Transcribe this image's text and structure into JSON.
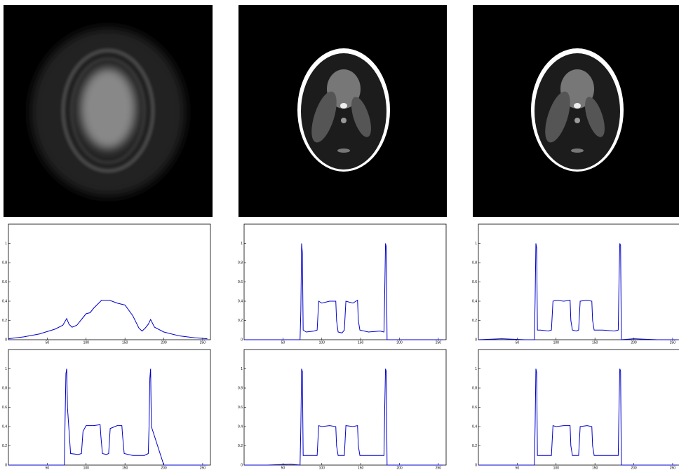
{
  "chart_data": [
    {
      "type": "line",
      "xlim": [
        0,
        260
      ],
      "ylim": [
        0,
        1.2
      ],
      "xticks": [
        50,
        100,
        150,
        200,
        250
      ],
      "yticks": [
        0,
        0.2,
        0.4,
        0.6,
        0.8,
        1
      ],
      "x": [
        0,
        20,
        40,
        60,
        70,
        75,
        78,
        82,
        88,
        95,
        100,
        105,
        110,
        120,
        130,
        140,
        150,
        160,
        168,
        172,
        176,
        180,
        183,
        188,
        200,
        220,
        240,
        256
      ],
      "series": [
        {
          "color": "#0000cc",
          "values": [
            0.01,
            0.03,
            0.06,
            0.11,
            0.15,
            0.22,
            0.16,
            0.13,
            0.15,
            0.22,
            0.27,
            0.28,
            0.33,
            0.41,
            0.41,
            0.38,
            0.36,
            0.25,
            0.12,
            0.09,
            0.12,
            0.16,
            0.21,
            0.13,
            0.08,
            0.04,
            0.02,
            0.01
          ]
        }
      ]
    },
    {
      "type": "line",
      "xlim": [
        0,
        260
      ],
      "ylim": [
        0,
        1.2
      ],
      "xticks": [
        50,
        100,
        150,
        200,
        250
      ],
      "yticks": [
        0,
        0.2,
        0.4,
        0.6,
        0.8,
        1
      ],
      "x": [
        0,
        30,
        60,
        72,
        73,
        74,
        75,
        76,
        80,
        90,
        94,
        96,
        100,
        110,
        118,
        119,
        121,
        126,
        129,
        131,
        140,
        146,
        147,
        149,
        160,
        175,
        180,
        181,
        182,
        183,
        184,
        200,
        230,
        256
      ],
      "series": [
        {
          "color": "#0000cc",
          "values": [
            0,
            0,
            0,
            0,
            0.3,
            1.0,
            0.9,
            0.1,
            0.08,
            0.09,
            0.1,
            0.4,
            0.38,
            0.4,
            0.4,
            0.2,
            0.08,
            0.07,
            0.1,
            0.4,
            0.38,
            0.41,
            0.2,
            0.1,
            0.08,
            0.09,
            0.08,
            0.5,
            1.0,
            0.96,
            0,
            0,
            0,
            0
          ]
        }
      ]
    },
    {
      "type": "line",
      "xlim": [
        0,
        260
      ],
      "ylim": [
        0,
        1.2
      ],
      "xticks": [
        50,
        100,
        150,
        200,
        250
      ],
      "yticks": [
        0,
        0.2,
        0.4,
        0.6,
        0.8,
        1
      ],
      "x": [
        0,
        30,
        60,
        72,
        73,
        74,
        75,
        76,
        80,
        90,
        94,
        96,
        100,
        110,
        118,
        119,
        121,
        126,
        129,
        131,
        140,
        146,
        147,
        149,
        160,
        175,
        180,
        181,
        182,
        183,
        184,
        200,
        230,
        256
      ],
      "series": [
        {
          "color": "#0000cc",
          "values": [
            0,
            0.01,
            0,
            0,
            0.4,
            1.0,
            0.95,
            0.1,
            0.1,
            0.09,
            0.1,
            0.4,
            0.41,
            0.4,
            0.41,
            0.2,
            0.1,
            0.09,
            0.1,
            0.4,
            0.41,
            0.4,
            0.2,
            0.1,
            0.1,
            0.09,
            0.1,
            0.6,
            1.0,
            0.98,
            0,
            0.01,
            0,
            0
          ]
        }
      ]
    },
    {
      "type": "line",
      "xlim": [
        0,
        260
      ],
      "ylim": [
        0,
        1.2
      ],
      "xticks": [
        50,
        100,
        150,
        200,
        250
      ],
      "yticks": [
        0,
        0.2,
        0.4,
        0.6,
        0.8,
        1
      ],
      "x": [
        0,
        30,
        60,
        72,
        73,
        74,
        75,
        76,
        80,
        90,
        94,
        96,
        100,
        110,
        118,
        119,
        121,
        126,
        129,
        131,
        140,
        146,
        147,
        149,
        160,
        175,
        180,
        181,
        182,
        183,
        184,
        200,
        230,
        256
      ],
      "series": [
        {
          "color": "#0000cc",
          "values": [
            0,
            0,
            0,
            0,
            0.5,
            0.95,
            1.0,
            0.6,
            0.12,
            0.11,
            0.12,
            0.35,
            0.41,
            0.41,
            0.42,
            0.3,
            0.12,
            0.11,
            0.12,
            0.38,
            0.41,
            0.41,
            0.3,
            0.12,
            0.1,
            0.1,
            0.12,
            0.4,
            0.9,
            1.0,
            0.4,
            0,
            0,
            0
          ]
        }
      ]
    },
    {
      "type": "line",
      "xlim": [
        0,
        260
      ],
      "ylim": [
        0,
        1.2
      ],
      "xticks": [
        50,
        100,
        150,
        200,
        250
      ],
      "yticks": [
        0,
        0.2,
        0.4,
        0.6,
        0.8,
        1
      ],
      "x": [
        0,
        30,
        60,
        72,
        73,
        74,
        75,
        76,
        80,
        90,
        94,
        96,
        100,
        110,
        118,
        119,
        121,
        126,
        129,
        131,
        140,
        146,
        147,
        149,
        160,
        175,
        180,
        181,
        182,
        183,
        184,
        200,
        230,
        256
      ],
      "series": [
        {
          "color": "#0000cc",
          "values": [
            0,
            0,
            0.01,
            0,
            0.4,
            1.0,
            0.97,
            0.1,
            0.1,
            0.1,
            0.1,
            0.41,
            0.4,
            0.41,
            0.4,
            0.2,
            0.1,
            0.1,
            0.1,
            0.41,
            0.4,
            0.41,
            0.2,
            0.1,
            0.1,
            0.1,
            0.1,
            0.6,
            1.0,
            0.97,
            0,
            0,
            0,
            0
          ]
        }
      ]
    },
    {
      "type": "line",
      "xlim": [
        0,
        260
      ],
      "ylim": [
        0,
        1.2
      ],
      "xticks": [
        50,
        100,
        150,
        200,
        250
      ],
      "yticks": [
        0,
        0.2,
        0.4,
        0.6,
        0.8,
        1
      ],
      "x": [
        0,
        30,
        60,
        72,
        73,
        74,
        75,
        76,
        80,
        90,
        94,
        96,
        100,
        110,
        118,
        119,
        121,
        126,
        129,
        131,
        140,
        146,
        147,
        149,
        160,
        175,
        180,
        181,
        182,
        183,
        184,
        200,
        230,
        256
      ],
      "series": [
        {
          "color": "#0000cc",
          "values": [
            0,
            0,
            0,
            0,
            0.4,
            1.0,
            0.96,
            0.1,
            0.1,
            0.1,
            0.1,
            0.41,
            0.4,
            0.41,
            0.41,
            0.2,
            0.1,
            0.1,
            0.1,
            0.4,
            0.41,
            0.4,
            0.2,
            0.1,
            0.1,
            0.1,
            0.1,
            0.6,
            1.0,
            0.98,
            0,
            0,
            0,
            0
          ]
        }
      ]
    }
  ]
}
